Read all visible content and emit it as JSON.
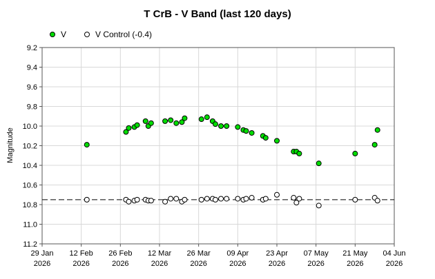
{
  "chart_data": {
    "type": "scatter",
    "title": "T CrB - V Band (last 120 days)",
    "ylabel": "Magnitude",
    "xlabel": "",
    "ylim": [
      9.2,
      11.2
    ],
    "y_inverted": true,
    "y_ticks": [
      "9.2",
      "9.4",
      "9.6",
      "9.8",
      "10.0",
      "10.2",
      "10.4",
      "10.6",
      "10.8",
      "11.0",
      "11.2"
    ],
    "xlim": [
      "2026-01-29",
      "2026-06-04"
    ],
    "x_ticks": [
      {
        "date": "2026-01-29",
        "line1": "29 Jan",
        "line2": "2026"
      },
      {
        "date": "2026-02-12",
        "line1": "12 Feb",
        "line2": "2026"
      },
      {
        "date": "2026-02-26",
        "line1": "26 Feb",
        "line2": "2026"
      },
      {
        "date": "2026-03-12",
        "line1": "12 Mar",
        "line2": "2026"
      },
      {
        "date": "2026-03-26",
        "line1": "26 Mar",
        "line2": "2026"
      },
      {
        "date": "2026-04-09",
        "line1": "09 Apr",
        "line2": "2026"
      },
      {
        "date": "2026-04-23",
        "line1": "23 Apr",
        "line2": "2026"
      },
      {
        "date": "2026-05-07",
        "line1": "07 May",
        "line2": "2026"
      },
      {
        "date": "2026-05-21",
        "line1": "21 May",
        "line2": "2026"
      },
      {
        "date": "2026-06-04",
        "line1": "04 Jun",
        "line2": "2026"
      }
    ],
    "grid": true,
    "legend_position": "top-left",
    "reference_line": {
      "y": 10.75,
      "style": "dashed"
    },
    "series": [
      {
        "name": "V",
        "marker": "filled-circle",
        "color": "#00dd00",
        "points": [
          {
            "x": "2026-02-14",
            "y": 10.19
          },
          {
            "x": "2026-02-28",
            "y": 10.06
          },
          {
            "x": "2026-03-01",
            "y": 10.02
          },
          {
            "x": "2026-03-03",
            "y": 10.01
          },
          {
            "x": "2026-03-04",
            "y": 9.99
          },
          {
            "x": "2026-03-07",
            "y": 9.95
          },
          {
            "x": "2026-03-08",
            "y": 10.0
          },
          {
            "x": "2026-03-09",
            "y": 9.97
          },
          {
            "x": "2026-03-14",
            "y": 9.95
          },
          {
            "x": "2026-03-16",
            "y": 9.94
          },
          {
            "x": "2026-03-18",
            "y": 9.97
          },
          {
            "x": "2026-03-20",
            "y": 9.96
          },
          {
            "x": "2026-03-21",
            "y": 9.92
          },
          {
            "x": "2026-03-27",
            "y": 9.93
          },
          {
            "x": "2026-03-29",
            "y": 9.91
          },
          {
            "x": "2026-03-31",
            "y": 9.95
          },
          {
            "x": "2026-04-01",
            "y": 9.98
          },
          {
            "x": "2026-04-03",
            "y": 10.0
          },
          {
            "x": "2026-04-05",
            "y": 10.0
          },
          {
            "x": "2026-04-09",
            "y": 10.01
          },
          {
            "x": "2026-04-11",
            "y": 10.04
          },
          {
            "x": "2026-04-12",
            "y": 10.05
          },
          {
            "x": "2026-04-14",
            "y": 10.07
          },
          {
            "x": "2026-04-18",
            "y": 10.1
          },
          {
            "x": "2026-04-19",
            "y": 10.12
          },
          {
            "x": "2026-04-23",
            "y": 10.15
          },
          {
            "x": "2026-04-29",
            "y": 10.26
          },
          {
            "x": "2026-04-30",
            "y": 10.26
          },
          {
            "x": "2026-05-01",
            "y": 10.28
          },
          {
            "x": "2026-05-08",
            "y": 10.38
          },
          {
            "x": "2026-05-21",
            "y": 10.28
          },
          {
            "x": "2026-05-28",
            "y": 10.19
          },
          {
            "x": "2026-05-29",
            "y": 10.04
          }
        ]
      },
      {
        "name": "V Control (-0.4)",
        "marker": "open-circle",
        "color": "#ffffff",
        "points": [
          {
            "x": "2026-02-14",
            "y": 10.75
          },
          {
            "x": "2026-02-28",
            "y": 10.75
          },
          {
            "x": "2026-03-01",
            "y": 10.77
          },
          {
            "x": "2026-03-03",
            "y": 10.76
          },
          {
            "x": "2026-03-04",
            "y": 10.75
          },
          {
            "x": "2026-03-07",
            "y": 10.75
          },
          {
            "x": "2026-03-08",
            "y": 10.76
          },
          {
            "x": "2026-03-09",
            "y": 10.76
          },
          {
            "x": "2026-03-14",
            "y": 10.77
          },
          {
            "x": "2026-03-16",
            "y": 10.74
          },
          {
            "x": "2026-03-18",
            "y": 10.74
          },
          {
            "x": "2026-03-20",
            "y": 10.77
          },
          {
            "x": "2026-03-21",
            "y": 10.75
          },
          {
            "x": "2026-03-27",
            "y": 10.75
          },
          {
            "x": "2026-03-29",
            "y": 10.74
          },
          {
            "x": "2026-03-31",
            "y": 10.74
          },
          {
            "x": "2026-04-01",
            "y": 10.75
          },
          {
            "x": "2026-04-03",
            "y": 10.74
          },
          {
            "x": "2026-04-05",
            "y": 10.74
          },
          {
            "x": "2026-04-09",
            "y": 10.74
          },
          {
            "x": "2026-04-11",
            "y": 10.75
          },
          {
            "x": "2026-04-12",
            "y": 10.74
          },
          {
            "x": "2026-04-14",
            "y": 10.73
          },
          {
            "x": "2026-04-18",
            "y": 10.75
          },
          {
            "x": "2026-04-19",
            "y": 10.74
          },
          {
            "x": "2026-04-23",
            "y": 10.7
          },
          {
            "x": "2026-04-29",
            "y": 10.73
          },
          {
            "x": "2026-04-30",
            "y": 10.78
          },
          {
            "x": "2026-05-01",
            "y": 10.74
          },
          {
            "x": "2026-05-08",
            "y": 10.81
          },
          {
            "x": "2026-05-21",
            "y": 10.75
          },
          {
            "x": "2026-05-28",
            "y": 10.73
          },
          {
            "x": "2026-05-29",
            "y": 10.76
          }
        ]
      }
    ]
  }
}
